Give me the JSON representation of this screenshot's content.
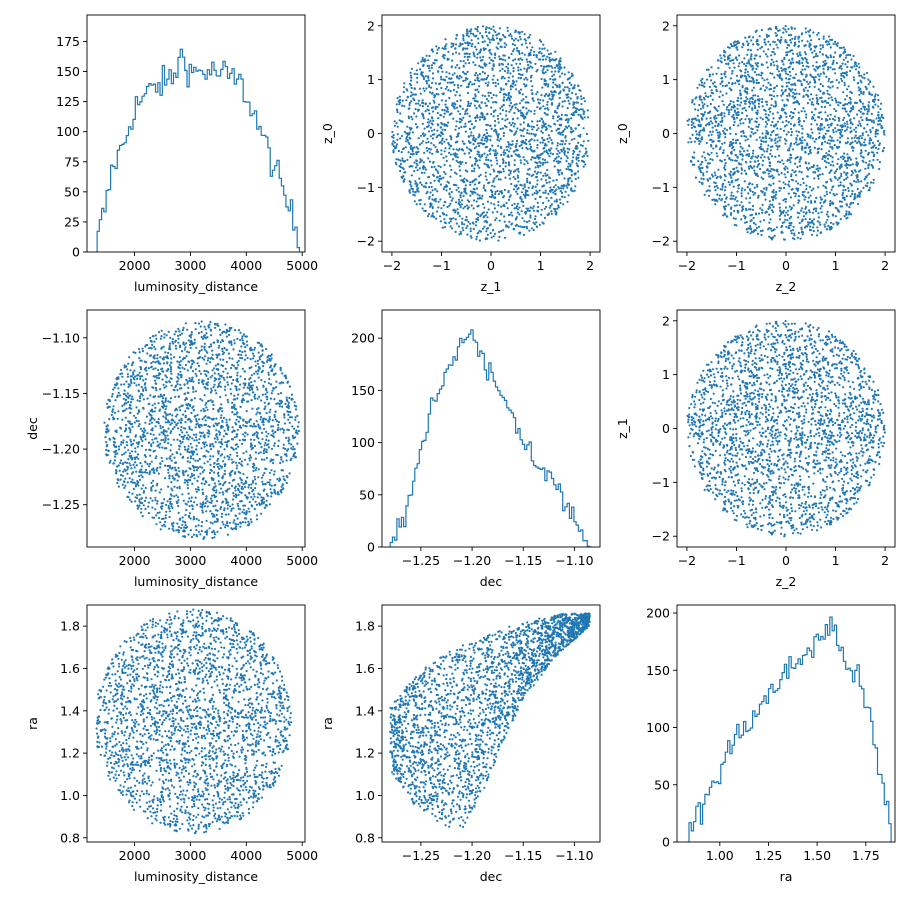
{
  "figure": {
    "series_color": "#1f77b4"
  },
  "chart_data": [
    {
      "id": "p00",
      "type": "histogram",
      "xlabel": "luminosity_distance",
      "ylabel": "",
      "xlim": [
        1150,
        5050
      ],
      "ylim": [
        0,
        197
      ],
      "xticks": [
        2000,
        3000,
        4000,
        5000
      ],
      "xtick_labels": [
        "2000",
        "3000",
        "4000",
        "5000"
      ],
      "yticks": [
        0,
        25,
        50,
        75,
        100,
        125,
        150,
        175
      ],
      "ytick_labels": [
        "0",
        "25",
        "50",
        "75",
        "100",
        "125",
        "150",
        "175"
      ],
      "bin_range": [
        1330,
        4950
      ],
      "envelope": [
        [
          1330,
          5
        ],
        [
          1400,
          25
        ],
        [
          1500,
          40
        ],
        [
          1600,
          70
        ],
        [
          1800,
          88
        ],
        [
          2000,
          120
        ],
        [
          2300,
          135
        ],
        [
          2700,
          145
        ],
        [
          2850,
          165
        ],
        [
          3000,
          150
        ],
        [
          3300,
          150
        ],
        [
          3600,
          148
        ],
        [
          3900,
          140
        ],
        [
          4100,
          120
        ],
        [
          4300,
          95
        ],
        [
          4500,
          70
        ],
        [
          4700,
          45
        ],
        [
          4850,
          25
        ],
        [
          4950,
          10
        ]
      ]
    },
    {
      "id": "p01",
      "type": "scatter",
      "xlabel": "z_1",
      "ylabel": "z_0",
      "xlim": [
        -2.2,
        2.2
      ],
      "ylim": [
        -2.2,
        2.2
      ],
      "xticks": [
        -2,
        -1,
        0,
        1,
        2
      ],
      "xtick_labels": [
        "−2",
        "−1",
        "0",
        "1",
        "2"
      ],
      "yticks": [
        -2,
        -1,
        0,
        1,
        2
      ],
      "ytick_labels": [
        "−2",
        "−1",
        "0",
        "1",
        "2"
      ],
      "region": {
        "shape": "disc",
        "center": [
          0,
          0
        ],
        "radius": 2.0
      }
    },
    {
      "id": "p02",
      "type": "scatter",
      "xlabel": "z_2",
      "ylabel": "z_0",
      "xlim": [
        -2.2,
        2.2
      ],
      "ylim": [
        -2.2,
        2.2
      ],
      "xticks": [
        -2,
        -1,
        0,
        1,
        2
      ],
      "xtick_labels": [
        "−2",
        "−1",
        "0",
        "1",
        "2"
      ],
      "yticks": [
        -2,
        -1,
        0,
        1,
        2
      ],
      "ytick_labels": [
        "−2",
        "−1",
        "0",
        "1",
        "2"
      ],
      "region": {
        "shape": "disc",
        "center": [
          0,
          0
        ],
        "radius": 2.0
      }
    },
    {
      "id": "p10",
      "type": "scatter",
      "xlabel": "luminosity_distance",
      "ylabel": "dec",
      "xlim": [
        1150,
        5050
      ],
      "ylim": [
        -1.288,
        -1.075
      ],
      "xticks": [
        2000,
        3000,
        4000,
        5000
      ],
      "xtick_labels": [
        "2000",
        "3000",
        "4000",
        "5000"
      ],
      "yticks": [
        -1.25,
        -1.2,
        -1.15,
        -1.1
      ],
      "ytick_labels": [
        "−1.25",
        "−1.20",
        "−1.15",
        "−1.10"
      ],
      "region": {
        "shape": "ellipse",
        "center": [
          3200,
          -1.183
        ],
        "radius": [
          1750,
          0.098
        ]
      }
    },
    {
      "id": "p11",
      "type": "histogram",
      "xlabel": "dec",
      "ylabel": "",
      "xlim": [
        -1.288,
        -1.075
      ],
      "ylim": [
        0,
        227
      ],
      "xticks": [
        -1.25,
        -1.2,
        -1.15,
        -1.1
      ],
      "xtick_labels": [
        "−1.25",
        "−1.20",
        "−1.15",
        "−1.10"
      ],
      "yticks": [
        0,
        50,
        100,
        150,
        200
      ],
      "ytick_labels": [
        "0",
        "50",
        "100",
        "150",
        "200"
      ],
      "bin_range": [
        -1.28,
        -1.083
      ],
      "envelope": [
        [
          -1.28,
          5
        ],
        [
          -1.265,
          25
        ],
        [
          -1.255,
          70
        ],
        [
          -1.245,
          115
        ],
        [
          -1.235,
          145
        ],
        [
          -1.22,
          180
        ],
        [
          -1.21,
          200
        ],
        [
          -1.2,
          200
        ],
        [
          -1.19,
          180
        ],
        [
          -1.175,
          150
        ],
        [
          -1.16,
          125
        ],
        [
          -1.145,
          95
        ],
        [
          -1.13,
          70
        ],
        [
          -1.115,
          55
        ],
        [
          -1.1,
          25
        ],
        [
          -1.09,
          10
        ],
        [
          -1.083,
          3
        ]
      ]
    },
    {
      "id": "p12",
      "type": "scatter",
      "xlabel": "z_2",
      "ylabel": "z_1",
      "xlim": [
        -2.2,
        2.2
      ],
      "ylim": [
        -2.2,
        2.2
      ],
      "xticks": [
        -2,
        -1,
        0,
        1,
        2
      ],
      "xtick_labels": [
        "−2",
        "−1",
        "0",
        "1",
        "2"
      ],
      "yticks": [
        -2,
        -1,
        0,
        1,
        2
      ],
      "ytick_labels": [
        "−2",
        "−1",
        "0",
        "1",
        "2"
      ],
      "region": {
        "shape": "disc",
        "center": [
          0,
          0
        ],
        "radius": 2.0
      }
    },
    {
      "id": "p20",
      "type": "scatter",
      "xlabel": "luminosity_distance",
      "ylabel": "ra",
      "xlim": [
        1150,
        5050
      ],
      "ylim": [
        0.78,
        1.9
      ],
      "xticks": [
        2000,
        3000,
        4000,
        5000
      ],
      "xtick_labels": [
        "2000",
        "3000",
        "4000",
        "5000"
      ],
      "yticks": [
        0.8,
        1.0,
        1.2,
        1.4,
        1.6,
        1.8
      ],
      "ytick_labels": [
        "0.8",
        "1.0",
        "1.2",
        "1.4",
        "1.6",
        "1.8"
      ],
      "region": {
        "shape": "ellipse",
        "center": [
          3050,
          1.35
        ],
        "radius": [
          1760,
          0.53
        ]
      }
    },
    {
      "id": "p21",
      "type": "scatter",
      "xlabel": "dec",
      "ylabel": "ra",
      "xlim": [
        -1.288,
        -1.075
      ],
      "ylim": [
        0.78,
        1.9
      ],
      "xticks": [
        -1.25,
        -1.2,
        -1.15,
        -1.1
      ],
      "xtick_labels": [
        "−1.25",
        "−1.20",
        "−1.15",
        "−1.10"
      ],
      "yticks": [
        0.8,
        1.0,
        1.2,
        1.4,
        1.6,
        1.8
      ],
      "ytick_labels": [
        "0.8",
        "1.0",
        "1.2",
        "1.4",
        "1.6",
        "1.8"
      ],
      "region": {
        "shape": "banana",
        "x_range": [
          -1.28,
          -1.085
        ],
        "lower": [
          [
            -1.28,
            1.12
          ],
          [
            -1.26,
            0.97
          ],
          [
            -1.23,
            0.86
          ],
          [
            -1.21,
            0.84
          ],
          [
            -1.19,
            1.0
          ],
          [
            -1.17,
            1.25
          ],
          [
            -1.15,
            1.45
          ],
          [
            -1.12,
            1.65
          ],
          [
            -1.085,
            1.8
          ]
        ],
        "upper": [
          [
            -1.28,
            1.42
          ],
          [
            -1.26,
            1.55
          ],
          [
            -1.23,
            1.66
          ],
          [
            -1.2,
            1.73
          ],
          [
            -1.17,
            1.79
          ],
          [
            -1.14,
            1.83
          ],
          [
            -1.11,
            1.86
          ],
          [
            -1.085,
            1.86
          ]
        ]
      }
    },
    {
      "id": "p22",
      "type": "histogram",
      "xlabel": "ra",
      "ylabel": "",
      "xlim": [
        0.78,
        1.9
      ],
      "ylim": [
        0,
        207
      ],
      "xticks": [
        1.0,
        1.25,
        1.5,
        1.75
      ],
      "xtick_labels": [
        "1.00",
        "1.25",
        "1.50",
        "1.75"
      ],
      "yticks": [
        0,
        50,
        100,
        150,
        200
      ],
      "ytick_labels": [
        "0",
        "50",
        "100",
        "150",
        "200"
      ],
      "bin_range": [
        0.83,
        1.88
      ],
      "envelope": [
        [
          0.83,
          3
        ],
        [
          0.87,
          15
        ],
        [
          0.92,
          35
        ],
        [
          0.98,
          55
        ],
        [
          1.05,
          80
        ],
        [
          1.12,
          100
        ],
        [
          1.2,
          115
        ],
        [
          1.28,
          135
        ],
        [
          1.36,
          150
        ],
        [
          1.44,
          165
        ],
        [
          1.52,
          178
        ],
        [
          1.57,
          190
        ],
        [
          1.62,
          170
        ],
        [
          1.68,
          150
        ],
        [
          1.73,
          135
        ],
        [
          1.78,
          100
        ],
        [
          1.82,
          60
        ],
        [
          1.86,
          30
        ],
        [
          1.88,
          5
        ]
      ]
    }
  ]
}
